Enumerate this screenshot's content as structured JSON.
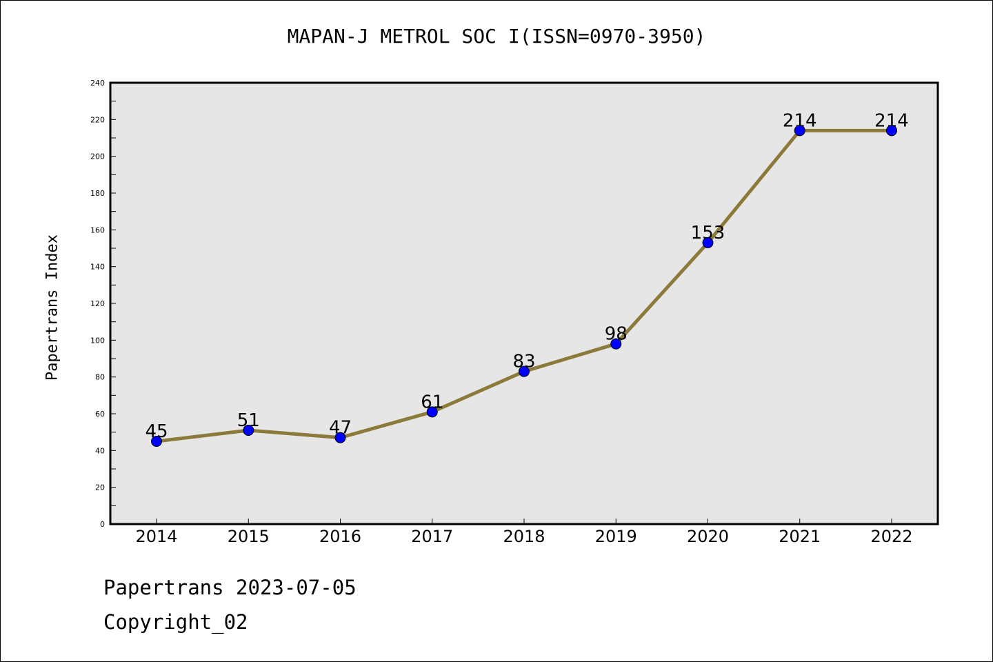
{
  "chart_data": {
    "type": "line",
    "title": "MAPAN-J METROL SOC I(ISSN=0970-3950)",
    "xlabel": "",
    "ylabel": "Papertrans Index",
    "categories": [
      "2014",
      "2015",
      "2016",
      "2017",
      "2018",
      "2019",
      "2020",
      "2021",
      "2022"
    ],
    "series": [
      {
        "values": [
          45,
          51,
          47,
          61,
          83,
          98,
          153,
          214,
          214
        ]
      }
    ],
    "data_labels": [
      "45",
      "51",
      "47",
      "61",
      "83",
      "98",
      "153",
      "214",
      "214"
    ],
    "ylim": [
      0,
      240
    ],
    "yticks": [
      0,
      20,
      40,
      60,
      80,
      100,
      120,
      140,
      160,
      180,
      200,
      220,
      240
    ],
    "grid": false,
    "colors": {
      "line": "#8c7a3a",
      "marker": "#0000ff",
      "plot_bg": "#e6e6e6"
    }
  },
  "footer": {
    "line1": "Papertrans 2023-07-05",
    "line2": "Copyright_02"
  }
}
